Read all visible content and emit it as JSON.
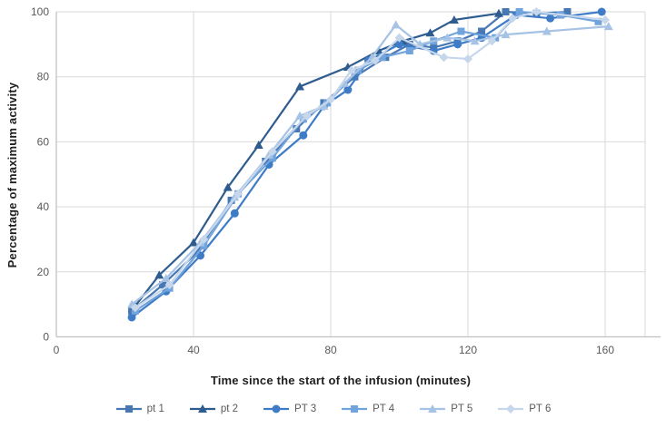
{
  "chart_data": {
    "type": "line",
    "title": "",
    "xlabel": "Time since the start of the infusion (minutes)",
    "ylabel": "Percentage of maximum activity",
    "xlim": [
      0,
      172
    ],
    "ylim": [
      0,
      100
    ],
    "x_ticks": [
      0,
      40,
      80,
      120,
      160
    ],
    "y_ticks": [
      0,
      20,
      40,
      60,
      80,
      100
    ],
    "grid": true,
    "legend_position": "bottom",
    "series": [
      {
        "name": "pt 1",
        "marker": "square",
        "color": "#4878b4",
        "points": [
          [
            22,
            8
          ],
          [
            31,
            16
          ],
          [
            41,
            26
          ],
          [
            51,
            42
          ],
          [
            61,
            54
          ],
          [
            70,
            64
          ],
          [
            78,
            72
          ],
          [
            87,
            80
          ],
          [
            96,
            86
          ],
          [
            103,
            90
          ],
          [
            110,
            89
          ],
          [
            117,
            91
          ],
          [
            124,
            94
          ],
          [
            131,
            100
          ],
          [
            140,
            99.5
          ],
          [
            149,
            100
          ]
        ]
      },
      {
        "name": "pt 2",
        "marker": "triangle",
        "color": "#2e5c8f",
        "points": [
          [
            23,
            9.5
          ],
          [
            30,
            19
          ],
          [
            40,
            29
          ],
          [
            50,
            46
          ],
          [
            59,
            59
          ],
          [
            71,
            77
          ],
          [
            85,
            83
          ],
          [
            94,
            88
          ],
          [
            101,
            91
          ],
          [
            109,
            93.5
          ],
          [
            116,
            97.5
          ],
          [
            129,
            99.5
          ]
        ]
      },
      {
        "name": "PT 3",
        "marker": "circle",
        "color": "#3e7cc7",
        "points": [
          [
            22,
            6
          ],
          [
            32,
            14
          ],
          [
            42,
            25
          ],
          [
            52,
            38
          ],
          [
            62,
            53
          ],
          [
            72,
            62
          ],
          [
            78,
            71
          ],
          [
            85,
            76
          ],
          [
            91,
            85
          ],
          [
            100,
            90
          ],
          [
            110,
            88
          ],
          [
            117,
            90
          ],
          [
            124,
            92
          ],
          [
            134,
            99
          ],
          [
            144,
            98
          ],
          [
            159,
            100
          ]
        ]
      },
      {
        "name": "PT 4",
        "marker": "square",
        "color": "#71a3dc",
        "points": [
          [
            23,
            8
          ],
          [
            33,
            15
          ],
          [
            43,
            28
          ],
          [
            53,
            44
          ],
          [
            63,
            55
          ],
          [
            72,
            67
          ],
          [
            79,
            72
          ],
          [
            88,
            82
          ],
          [
            95,
            86
          ],
          [
            103,
            88
          ],
          [
            110,
            91
          ],
          [
            118,
            94
          ],
          [
            128,
            92
          ],
          [
            135,
            100
          ],
          [
            147,
            99
          ],
          [
            158,
            97
          ]
        ]
      },
      {
        "name": "PT 5",
        "marker": "triangle",
        "color": "#a6c3e6",
        "points": [
          [
            22,
            10
          ],
          [
            32,
            18
          ],
          [
            42,
            29
          ],
          [
            52,
            43
          ],
          [
            62,
            56
          ],
          [
            71,
            68
          ],
          [
            78,
            71
          ],
          [
            84,
            78
          ],
          [
            92,
            86
          ],
          [
            99,
            96
          ],
          [
            106,
            90
          ],
          [
            114,
            92
          ],
          [
            122,
            91
          ],
          [
            131,
            93
          ],
          [
            143,
            94
          ],
          [
            161,
            95.5
          ]
        ]
      },
      {
        "name": "PT 6",
        "marker": "diamond",
        "color": "#c6d7ec",
        "points": [
          [
            23,
            9
          ],
          [
            33,
            16
          ],
          [
            43,
            30
          ],
          [
            53,
            44
          ],
          [
            63,
            57
          ],
          [
            73,
            68
          ],
          [
            80,
            73
          ],
          [
            86,
            82
          ],
          [
            93,
            85
          ],
          [
            100,
            92
          ],
          [
            113,
            86
          ],
          [
            120,
            85.5
          ],
          [
            127,
            91
          ],
          [
            133,
            98
          ],
          [
            140,
            100
          ],
          [
            160,
            97.5
          ]
        ]
      }
    ]
  },
  "colors": {
    "grid": "#d9d9d9",
    "axis": "#bfbfbf",
    "tick_text": "#595959",
    "title_text": "#1f1f1f",
    "background": "#ffffff"
  }
}
